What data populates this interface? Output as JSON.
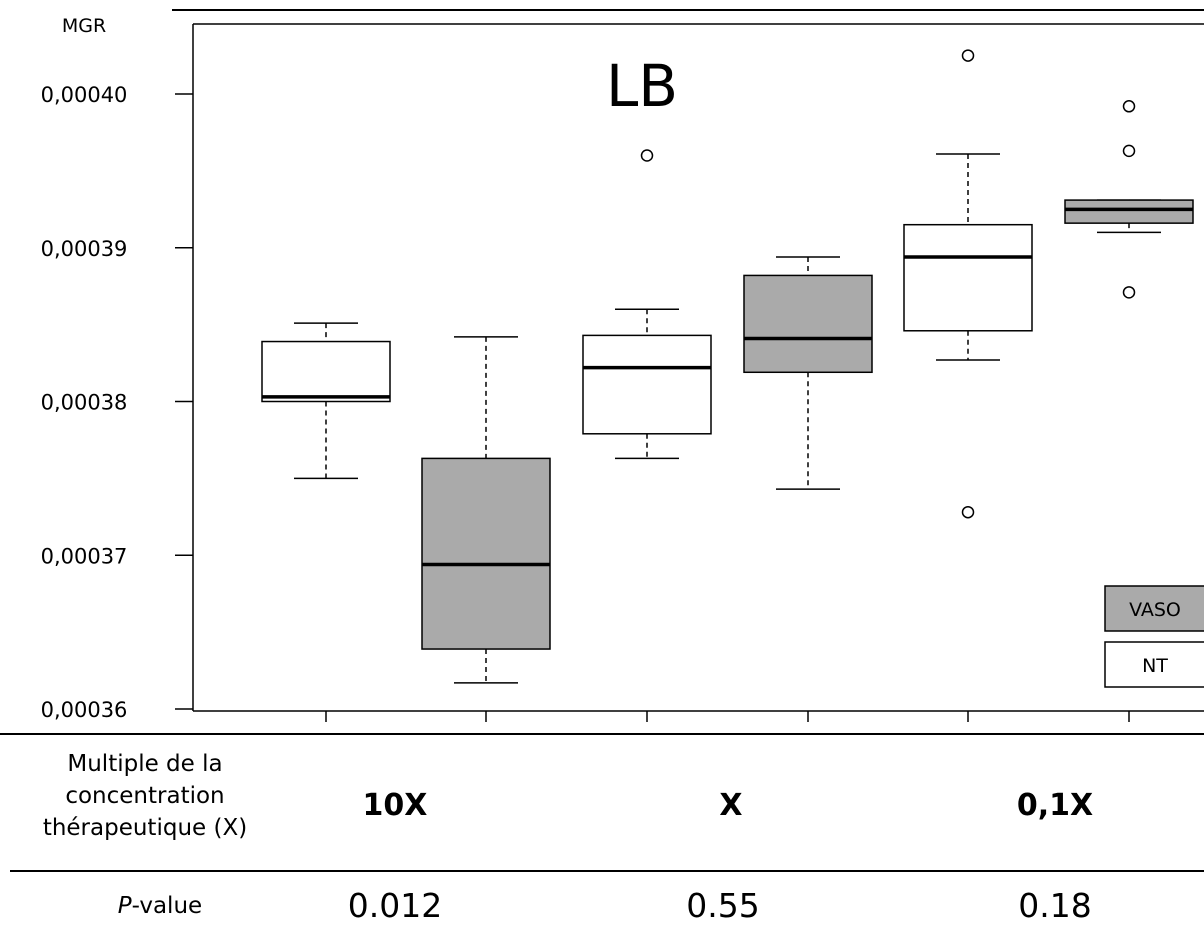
{
  "chart_data": {
    "type": "box",
    "title": "LB",
    "ylabel": "MGR",
    "ylim": [
      0.00036,
      0.000404
    ],
    "y_ticks": [
      0.0004,
      0.00039,
      0.00038,
      0.00037,
      0.00036
    ],
    "y_tick_labels": [
      "0,00040",
      "0,00039",
      "0,00038",
      "0,00037",
      "0,00036"
    ],
    "colors": {
      "VASO": "#aaaaaa",
      "NT": "#ffffff",
      "title": "#4a7ebb"
    },
    "legend": {
      "placement": "bottom-right",
      "entries": [
        "VASO",
        "NT"
      ]
    },
    "boxes": [
      {
        "group": "10X",
        "series": "NT",
        "whisker_low": 0.000375,
        "q1": 0.00038,
        "median": 0.0003803,
        "q3": 0.0003839,
        "whisker_high": 0.0003851,
        "outliers": []
      },
      {
        "group": "10X",
        "series": "VASO",
        "whisker_low": 0.0003617,
        "q1": 0.0003639,
        "median": 0.0003694,
        "q3": 0.0003763,
        "whisker_high": 0.0003842,
        "outliers": []
      },
      {
        "group": "X",
        "series": "NT",
        "whisker_low": 0.0003763,
        "q1": 0.0003779,
        "median": 0.0003822,
        "q3": 0.0003843,
        "whisker_high": 0.000386,
        "outliers": [
          0.000396
        ]
      },
      {
        "group": "X",
        "series": "VASO",
        "whisker_low": 0.0003743,
        "q1": 0.0003819,
        "median": 0.0003841,
        "q3": 0.0003882,
        "whisker_high": 0.0003894,
        "outliers": []
      },
      {
        "group": "0,1X",
        "series": "NT",
        "whisker_low": 0.0003827,
        "q1": 0.0003846,
        "median": 0.0003894,
        "q3": 0.0003915,
        "whisker_high": 0.0003961,
        "outliers": [
          0.0004025,
          0.0003728
        ]
      },
      {
        "group": "0,1X",
        "series": "VASO",
        "whisker_low": 0.000391,
        "q1": 0.0003916,
        "median": 0.0003925,
        "q3": 0.0003931,
        "whisker_high": 0.0003931,
        "outliers": [
          0.0003992,
          0.0003963,
          0.0003871
        ]
      }
    ]
  },
  "table": {
    "row_label_lines": [
      "Multiple de la",
      "concentration",
      "thérapeutique  (X)"
    ],
    "groups": [
      "10X",
      "X",
      "0,1X"
    ],
    "pvalue_label_italic": "P",
    "pvalue_label_rest": "-value",
    "pvalues": [
      "0.012",
      "0.55",
      "0.18"
    ]
  }
}
